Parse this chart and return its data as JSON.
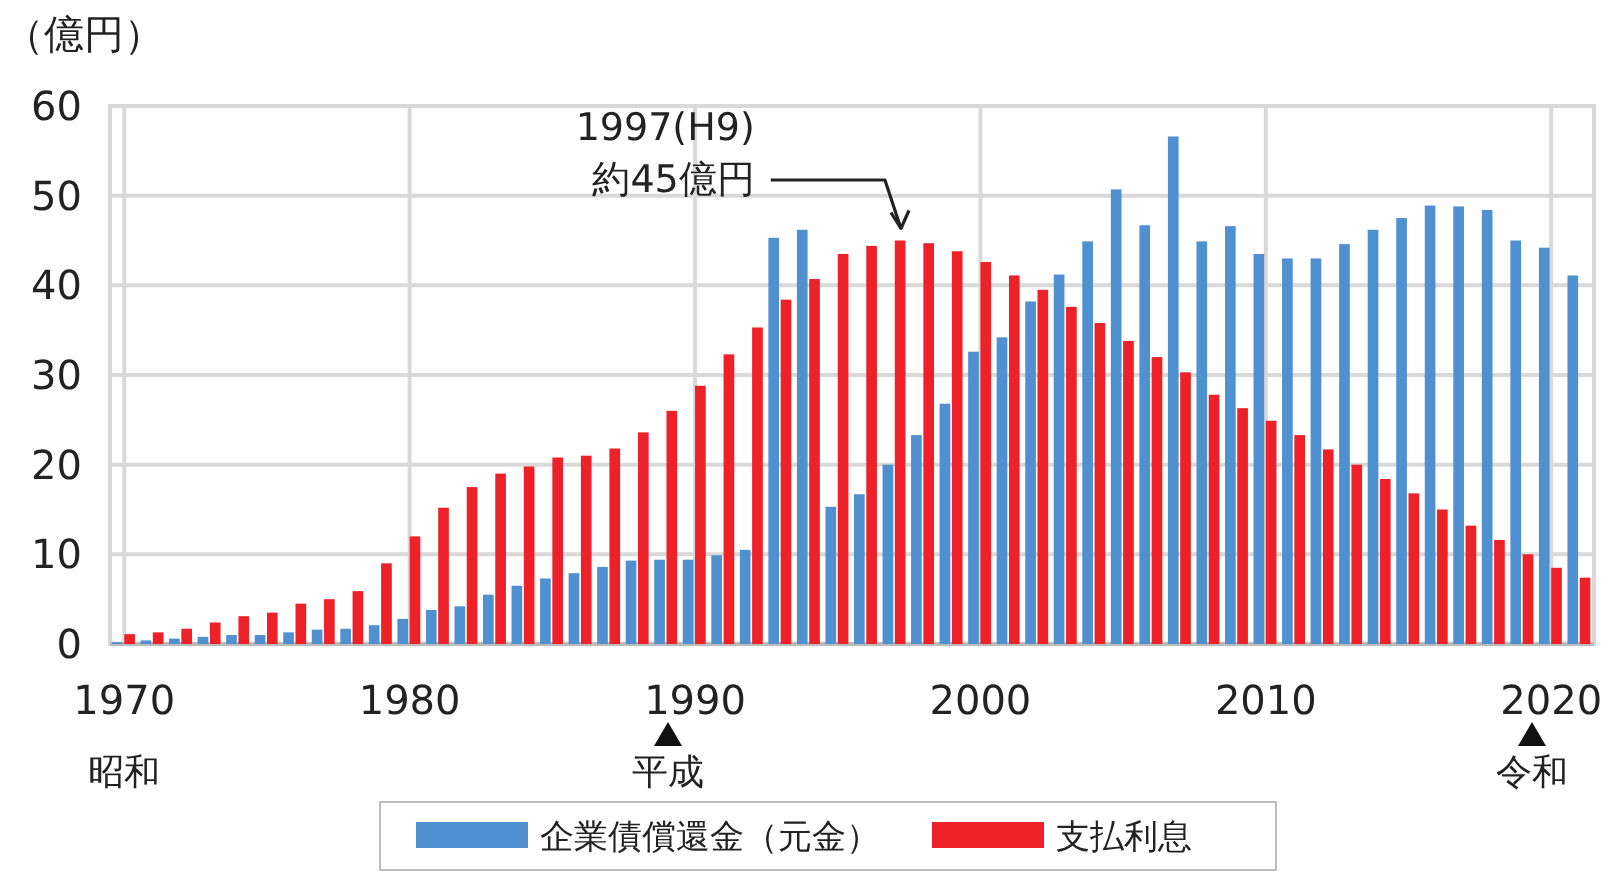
{
  "chart_data": {
    "type": "bar",
    "ylabel": "（億円）",
    "x": [
      1970,
      1971,
      1972,
      1973,
      1974,
      1975,
      1976,
      1977,
      1978,
      1979,
      1980,
      1981,
      1982,
      1983,
      1984,
      1985,
      1986,
      1987,
      1988,
      1989,
      1990,
      1991,
      1992,
      1993,
      1994,
      1995,
      1996,
      1997,
      1998,
      1999,
      2000,
      2001,
      2002,
      2003,
      2004,
      2005,
      2006,
      2007,
      2008,
      2009,
      2010,
      2011,
      2012,
      2013,
      2014,
      2015,
      2016,
      2017,
      2018,
      2019,
      2020,
      2021
    ],
    "series": [
      {
        "name": "企業債償還金（元金）",
        "color": "#4f90d0",
        "values": [
          0.2,
          0.4,
          0.6,
          0.8,
          1.0,
          1.0,
          1.3,
          1.6,
          1.7,
          2.1,
          2.8,
          3.8,
          4.2,
          5.5,
          6.5,
          7.3,
          7.9,
          8.6,
          9.3,
          9.4,
          9.4,
          9.9,
          10.5,
          45.3,
          46.2,
          15.3,
          16.7,
          20.0,
          23.3,
          26.8,
          32.6,
          34.2,
          38.2,
          41.2,
          44.9,
          50.7,
          46.7,
          56.6,
          44.9,
          46.6,
          43.5,
          43.0,
          43.0,
          44.6,
          46.2,
          47.5,
          48.9,
          48.8,
          48.4,
          45.0,
          44.2,
          41.1
        ]
      },
      {
        "name": "支払利息",
        "color": "#ee2129",
        "values": [
          1.1,
          1.3,
          1.7,
          2.4,
          3.1,
          3.5,
          4.5,
          5.0,
          5.9,
          9.0,
          12.0,
          15.2,
          17.5,
          19.0,
          19.8,
          20.8,
          21.0,
          21.8,
          23.6,
          26.0,
          28.8,
          32.3,
          35.3,
          38.4,
          40.7,
          43.5,
          44.4,
          45.0,
          44.7,
          43.8,
          42.6,
          41.1,
          39.5,
          37.6,
          35.8,
          33.8,
          32.0,
          30.3,
          27.8,
          26.3,
          24.9,
          23.3,
          21.7,
          20.0,
          18.4,
          16.8,
          15.0,
          13.2,
          11.6,
          10.0,
          8.5,
          7.4
        ]
      }
    ],
    "xlim": [
      1969.5,
      2021.5
    ],
    "xticks": [
      1970,
      1980,
      1990,
      2000,
      2010,
      2020
    ],
    "ylim": [
      0,
      60
    ],
    "yticks": [
      0,
      10,
      20,
      30,
      40,
      50,
      60
    ],
    "grid": true,
    "legend": "bottom",
    "annotations": [
      {
        "text": "1997(H9)\n約45億円",
        "x": 1997,
        "y": 45
      },
      "昭和",
      "平成",
      "令和"
    ]
  }
}
